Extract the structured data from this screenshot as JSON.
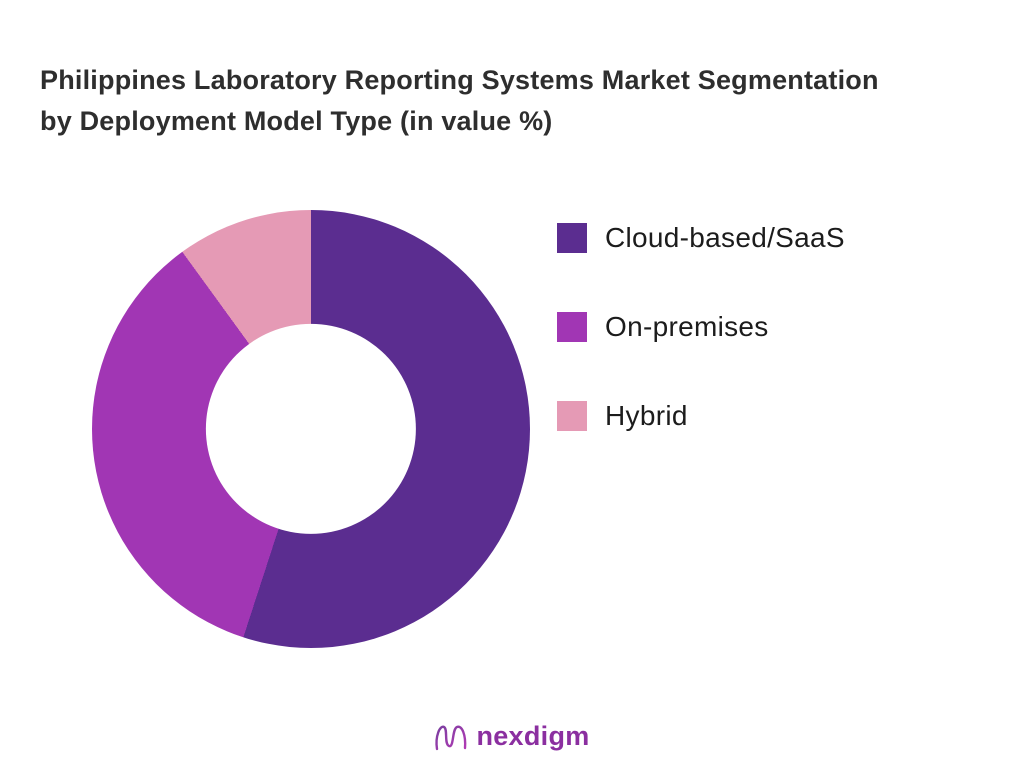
{
  "title": {
    "line1": "Philippines Laboratory Reporting Systems Market Segmentation",
    "line2": "by Deployment Model Type (in value %)"
  },
  "chart_data": {
    "type": "pie",
    "variant": "donut",
    "title": "Philippines Laboratory Reporting Systems Market Segmentation by Deployment Model Type (in value %)",
    "unit": "value %",
    "labels": [
      "Cloud-based/SaaS",
      "On-premises",
      "Hybrid"
    ],
    "values": [
      55,
      35,
      10
    ],
    "colors": [
      "#5b2d90",
      "#a136b4",
      "#e59ab5"
    ],
    "start_angle_deg": 0,
    "direction": "clockwise",
    "inner_radius_ratio": 0.48,
    "legend_position": "right",
    "data_labels_shown": false
  },
  "legend": {
    "items": [
      {
        "label": "Cloud-based/SaaS",
        "color": "#5b2d90"
      },
      {
        "label": "On-premises",
        "color": "#a136b4"
      },
      {
        "label": "Hybrid",
        "color": "#e59ab5"
      }
    ]
  },
  "footer": {
    "brand": "nexdigm",
    "brand_color": "#8b2fa0",
    "logo_icon": "nexdigm-wave-icon"
  }
}
